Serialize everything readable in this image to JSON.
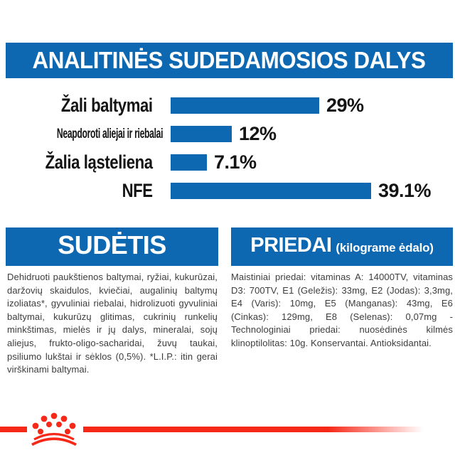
{
  "banner": {
    "title": "ANALITINĖS SUDEDAMOSIOS DALYS"
  },
  "chart_data": {
    "type": "bar",
    "orientation": "horizontal",
    "title": "ANALITINĖS SUDEDAMOSIOS DALYS",
    "categories": [
      "Žali baltymai",
      "Neapdoroti aliejai ir riebalai",
      "Žalia ląsteliena",
      "NFE"
    ],
    "values": [
      29,
      12,
      7.1,
      39.1
    ],
    "value_labels": [
      "29%",
      "12%",
      "7.1%",
      "39.1%"
    ],
    "xlim": [
      0,
      40
    ],
    "grid": false,
    "legend": false,
    "bar_color": "#0d68b1"
  },
  "sections": {
    "sudetis": {
      "title": "SUDĖTIS",
      "body": "Dehidruoti paukštienos baltymai, ryžiai, kukurūzai, daržovių skaidulos, kviečiai, augalinių baltymų izoliatas*, gyvuliniai riebalai, hidrolizuoti gyvuliniai baltymai, kukurūzų glitimas, cukrinių runkelių minkštimas, mielės ir jų dalys, mineralai, sojų aliejus, frukto-oligo-sacharidai, žuvų taukai, psiliumo lukštai ir sėklos (0,5%). *L.I.P.: itin gerai virškinami baltymai."
    },
    "priedai": {
      "title": "PRIEDAI",
      "title_suffix": "(kilograme ėdalo)",
      "body": "Maistiniai priedai: vitaminas A: 14000TV, vitaminas D3: 700TV, E1 (Geležis): 33mg, E2 (Jodas): 3,3mg, E4 (Varis): 10mg, E5 (Manganas): 43mg, E6 (Cinkas): 129mg, E8 (Selenas): 0,07mg - Technologiniai priedai: nuosėdinės kilmės klinoptilolitas: 10g. Konservantai. Antioksidantai."
    }
  },
  "footer": {
    "logo": "royal-canin-crown"
  },
  "colors": {
    "brand_blue": "#0d68b1",
    "brand_red": "#f62818",
    "heading_text": "#ffffff",
    "label_text": "#141414",
    "body_text": "#3d3d3d"
  }
}
